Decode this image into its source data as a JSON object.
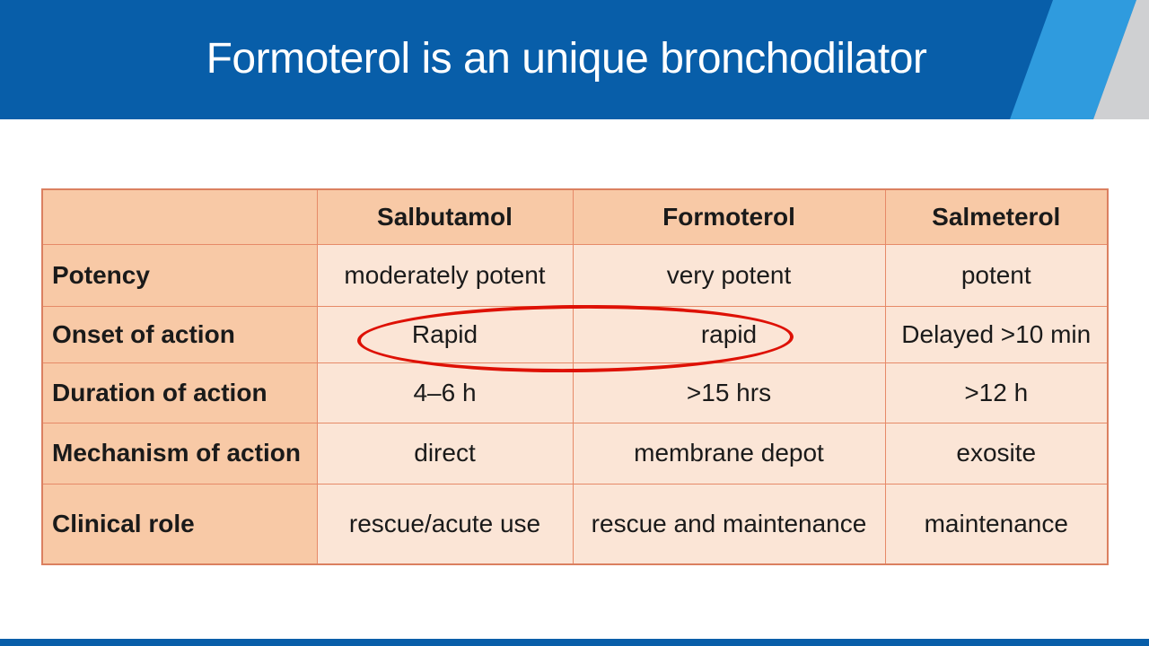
{
  "slide": {
    "title": "Formoterol is an unique bronchodilator",
    "colors": {
      "header_blue": "#085EA9",
      "accent_light_blue": "#2F9BDE",
      "accent_gray": "#CFD0D2",
      "table_header_bg": "#F8C9A6",
      "table_cell_bg": "#FBE5D6",
      "table_border": "#E68A68",
      "annotation_red": "#DE1105"
    }
  },
  "table": {
    "columns": [
      "",
      "Salbutamol",
      "Formoterol",
      "Salmeterol"
    ],
    "rows": [
      {
        "label": "Potency",
        "values": [
          "moderately potent",
          "very potent",
          "potent"
        ]
      },
      {
        "label": "Onset of action",
        "values": [
          "Rapid",
          "rapid",
          "Delayed >10 min"
        ]
      },
      {
        "label": "Duration of action",
        "values": [
          "4–6 h",
          ">15 hrs",
          ">12 h"
        ]
      },
      {
        "label": "Mechanism of action",
        "values": [
          "direct",
          "membrane depot",
          "exosite"
        ]
      },
      {
        "label": "Clinical role",
        "values": [
          "rescue/acute use",
          "rescue and maintenance",
          "maintenance"
        ]
      }
    ]
  },
  "annotation": {
    "shape": "ellipse"
  }
}
